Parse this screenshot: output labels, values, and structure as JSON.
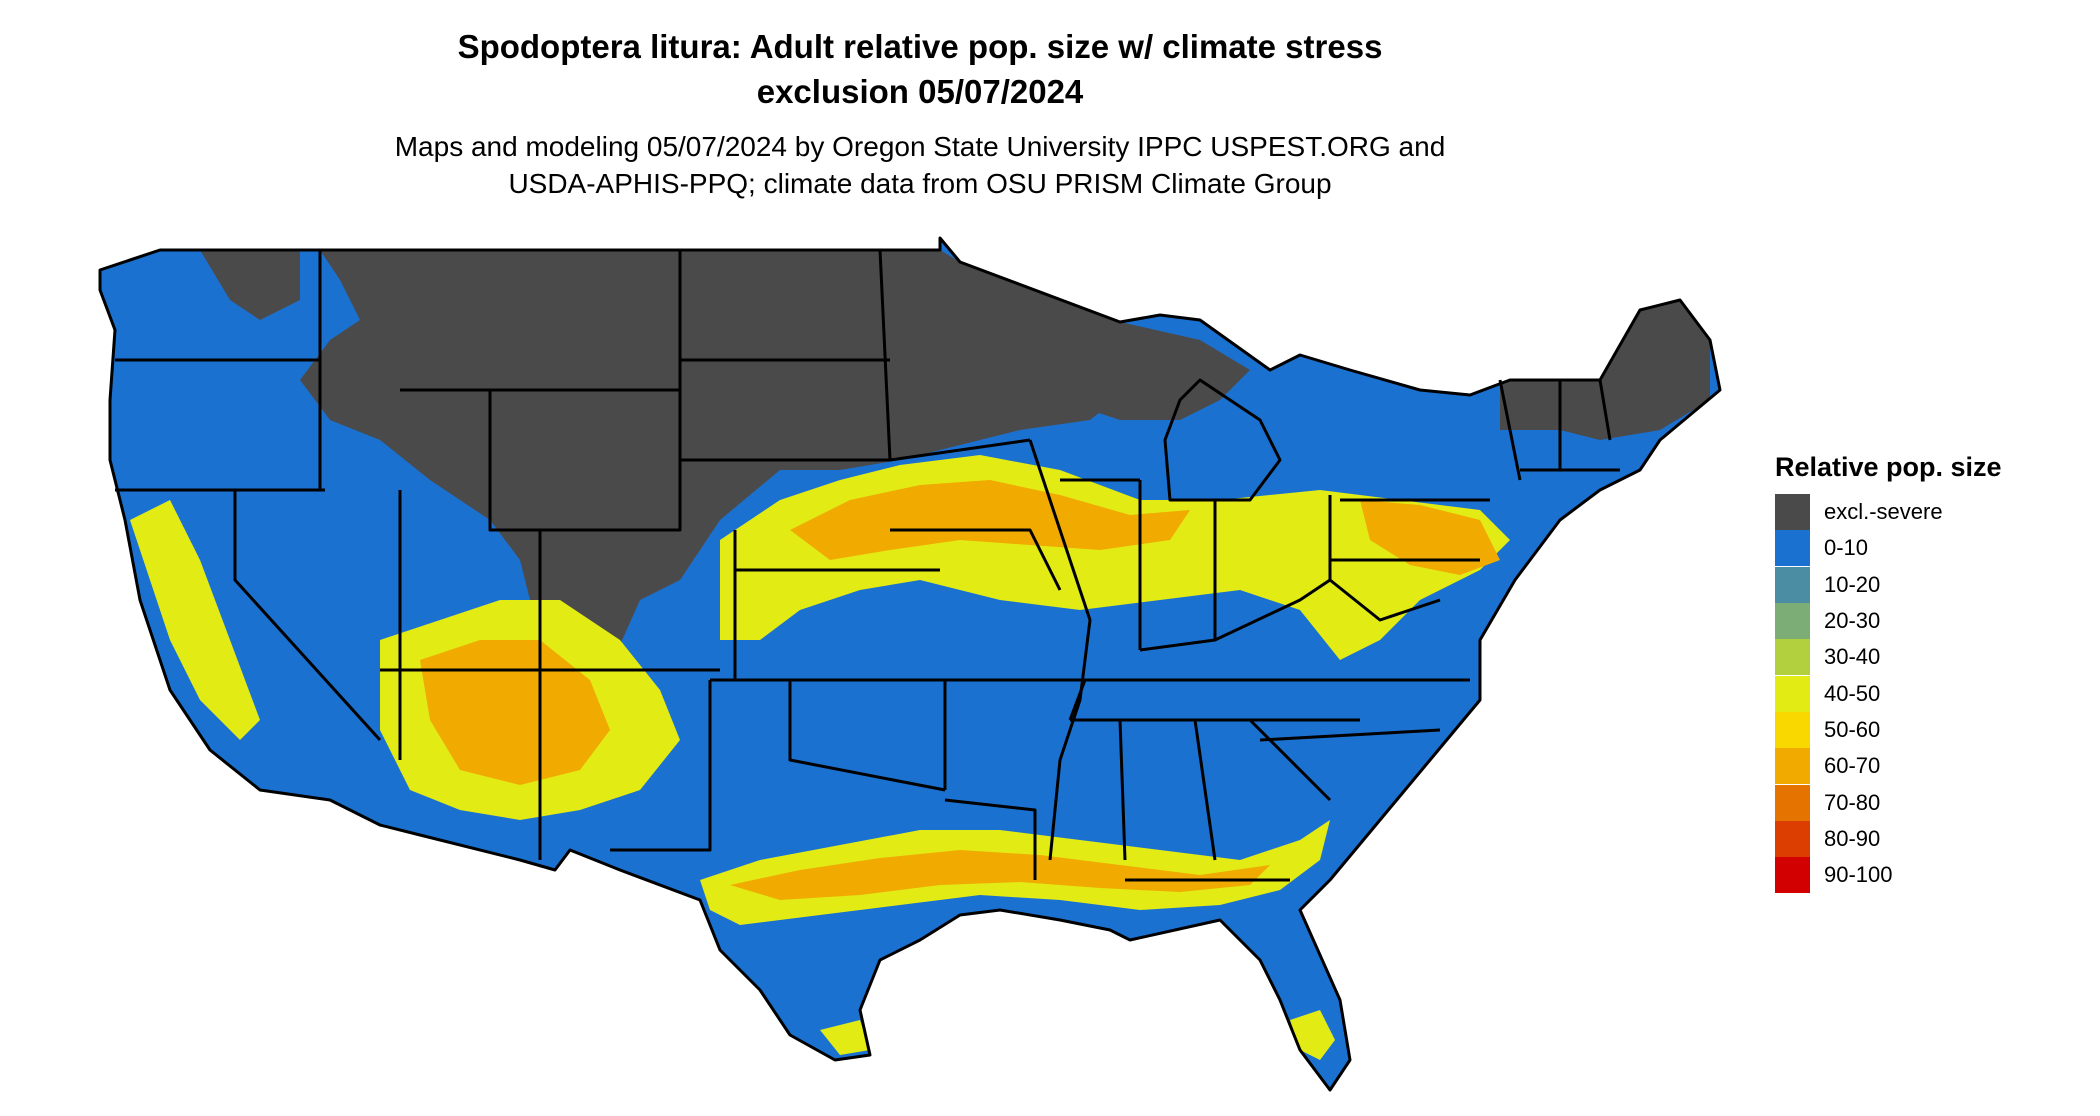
{
  "title": {
    "line1": "Spodoptera litura: Adult relative pop. size w/ climate stress",
    "line2": "exclusion 05/07/2024"
  },
  "subtitle": {
    "line1": "Maps and modeling 05/07/2024 by Oregon State University IPPC USPEST.ORG and",
    "line2": "USDA-APHIS-PPQ; climate data from OSU PRISM Climate Group"
  },
  "legend": {
    "title": "Relative pop. size",
    "items": [
      {
        "label": "excl.-severe",
        "color": "#4a4a4a"
      },
      {
        "label": "0-10",
        "color": "#1b71d0"
      },
      {
        "label": "10-20",
        "color": "#4b8ea3"
      },
      {
        "label": "20-30",
        "color": "#7dad76"
      },
      {
        "label": "30-40",
        "color": "#b2cf3d"
      },
      {
        "label": "40-50",
        "color": "#e3eb15"
      },
      {
        "label": "50-60",
        "color": "#f9d800"
      },
      {
        "label": "60-70",
        "color": "#f0aa00"
      },
      {
        "label": "70-80",
        "color": "#e57300"
      },
      {
        "label": "80-90",
        "color": "#dc3d00"
      },
      {
        "label": "90-100",
        "color": "#d20000"
      }
    ]
  },
  "map": {
    "colors": {
      "excluded": "#4a4a4a",
      "low": "#1b71d0",
      "band_mid": "#e3eb15",
      "band_high": "#f0aa00",
      "border": "#000000"
    }
  }
}
